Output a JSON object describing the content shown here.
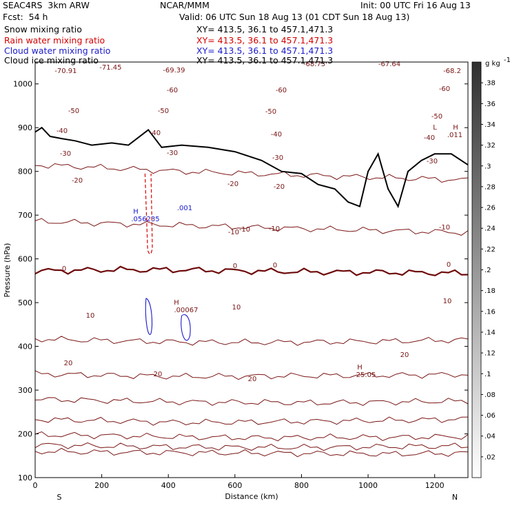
{
  "header": {
    "model": "SEAC4RS  3km ARW",
    "center": "NCAR/MMM",
    "init": "Init: 00 UTC Fri 16 Aug 13",
    "fcst": "Fcst:  54 h",
    "valid": "Valid: 06 UTC Sun 18 Aug 13 (01 CDT Sun 18 Aug 13)"
  },
  "fields": [
    {
      "label": "Snow mixing ratio",
      "xy": "XY= 413.5, 36.1 to 457.1,471.3",
      "color": "#000000"
    },
    {
      "label": "Rain water mixing ratio",
      "xy": "XY= 413.5, 36.1 to 457.1,471.3",
      "color": "#d40000"
    },
    {
      "label": "Cloud water mixing ratio",
      "xy": "XY= 413.5, 36.1 to 457.1,471.3",
      "color": "#1a1acc"
    },
    {
      "label": "Cloud ice mixing ratio",
      "xy": "XY= 413.5, 36.1 to 457.1,471.3",
      "color": "#000000"
    }
  ],
  "colors": {
    "temperature": "#7a1414",
    "zero_line": "#6e0a0a",
    "terrain": "#000000",
    "rain": "#d40000",
    "cloud_water": "#1a1acc"
  },
  "chart_data": {
    "type": "line",
    "xlabel": "Distance (km)",
    "ylabel": "Pressure (hPa)",
    "xlim": [
      0,
      1300
    ],
    "ylim": [
      1050,
      100
    ],
    "x_ticks": [
      0,
      200,
      400,
      600,
      800,
      1000,
      1200
    ],
    "y_ticks": [
      100,
      200,
      300,
      400,
      500,
      600,
      700,
      800,
      900,
      1000
    ],
    "x_end_labels": {
      "left": "S",
      "right": "N"
    },
    "temperature_contours": [
      {
        "value": -70,
        "y": [
          160,
          158,
          157,
          156,
          155,
          154,
          156
        ]
      },
      {
        "value": -60,
        "y": [
          175,
          172,
          170,
          169,
          169,
          171,
          172
        ]
      },
      {
        "value": -50,
        "y": [
          198,
          196,
          193,
          191,
          192,
          192,
          194
        ]
      },
      {
        "value": -40,
        "y": [
          233,
          230,
          226,
          227,
          229,
          231,
          234
        ]
      },
      {
        "value": -30,
        "y": [
          279,
          276,
          273,
          272,
          271,
          273,
          275
        ]
      },
      {
        "value": -20,
        "y": [
          337,
          334,
          331,
          332,
          333,
          334,
          336
        ]
      },
      {
        "value": -10,
        "y": [
          417,
          413,
          410,
          409,
          410,
          412,
          415
        ]
      },
      {
        "value": 0,
        "y": [
          572,
          575,
          575,
          572,
          570,
          569,
          567
        ]
      },
      {
        "value": 10,
        "y": [
          686,
          681,
          677,
          672,
          668,
          664,
          660
        ]
      },
      {
        "value": 20,
        "y": [
          815,
          808,
          800,
          795,
          790,
          785,
          780
        ]
      }
    ],
    "contour_labels": [
      "-70.91",
      "-71.45",
      "-69.39",
      "-68.73",
      "-67.64",
      "-68.2",
      "-60",
      "-50",
      "-40",
      "-30",
      "-20",
      "-10",
      "0",
      "10",
      "20",
      "-50",
      "-40",
      "H",
      ".011",
      "L"
    ],
    "terrain": {
      "x": [
        0,
        20,
        45,
        80,
        120,
        170,
        230,
        280,
        340,
        380,
        440,
        520,
        600,
        680,
        740,
        800,
        850,
        900,
        940,
        975,
        1000,
        1030,
        1060,
        1090,
        1120,
        1160,
        1200,
        1250,
        1300
      ],
      "p": [
        890,
        900,
        880,
        875,
        870,
        860,
        865,
        860,
        895,
        855,
        860,
        855,
        845,
        825,
        800,
        795,
        770,
        760,
        730,
        720,
        800,
        840,
        760,
        720,
        800,
        825,
        840,
        840,
        815
      ]
    },
    "maxima": [
      {
        "label": "H",
        "value": ".056235",
        "field": "cloud water"
      },
      {
        "label": "",
        "value": ".001",
        "field": "cloud water"
      },
      {
        "label": "H",
        "value": ".00067",
        "field": "rain water"
      },
      {
        "label": "H",
        "value": "25.05",
        "field": "temperature"
      }
    ],
    "colorbar": {
      "unit": "g kg",
      "ticks": [
        ".02",
        ".04",
        ".06",
        ".08",
        ".1",
        ".12",
        ".14",
        ".16",
        ".18",
        ".2",
        ".22",
        ".24",
        ".26",
        ".28",
        ".3",
        ".32",
        ".34",
        ".36",
        ".38"
      ]
    }
  }
}
